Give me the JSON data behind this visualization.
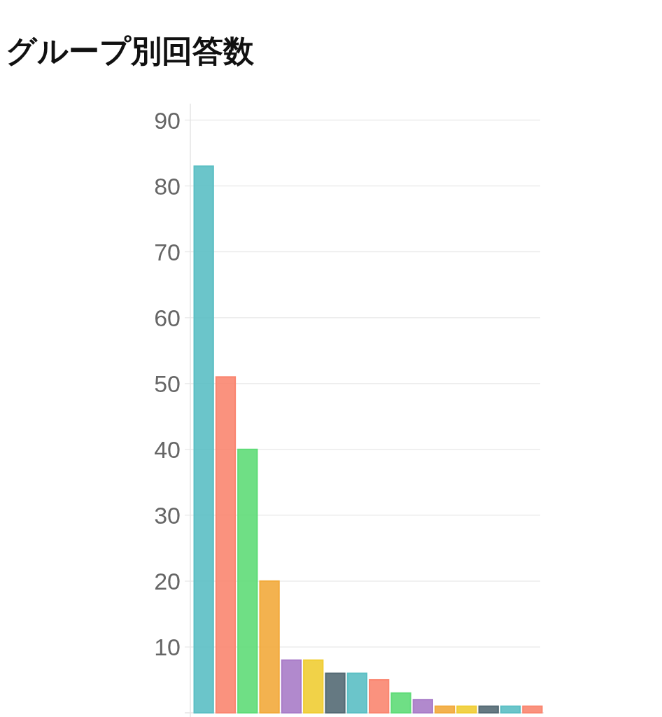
{
  "chart_data": {
    "type": "bar",
    "title": "グループ別回答数",
    "categories": [
      null,
      null,
      null,
      null,
      null,
      null,
      null,
      null,
      null,
      null,
      null,
      null,
      null,
      null,
      null,
      null
    ],
    "values": [
      83,
      51,
      40,
      20,
      8,
      8,
      6,
      6,
      5,
      3,
      2,
      1,
      1,
      1,
      1,
      1
    ],
    "colors": [
      "#5bbfc4",
      "#fa8670",
      "#5fdc78",
      "#f2aa3c",
      "#a97cc8",
      "#f0cd34",
      "#546a74",
      "#5bbfc4",
      "#fa8670",
      "#5fdc78",
      "#a97cc8",
      "#f2aa3c",
      "#f0cd34",
      "#546a74",
      "#5bbfc4",
      "#fa8670"
    ],
    "ylim": [
      0,
      92.5
    ],
    "yticks": [
      10,
      20,
      30,
      40,
      50,
      60,
      70,
      80,
      90
    ],
    "grid": "y"
  }
}
